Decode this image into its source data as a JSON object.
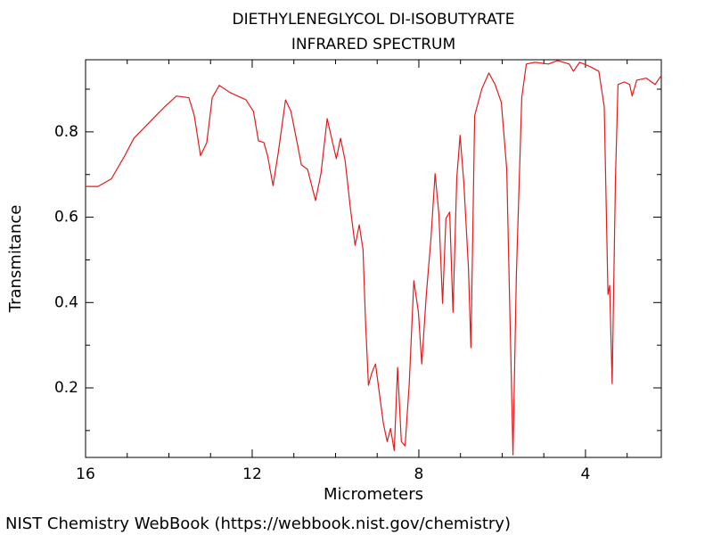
{
  "chart_data": {
    "type": "line",
    "title": "DIETHYLENEGLYCOL DI-ISOBUTYRATE",
    "subtitle": "INFRARED SPECTRUM",
    "x_label": "Micrometers",
    "y_label": "Transmitance",
    "source": "NIST Chemistry WebBook (https://webbook.nist.gov/chemistry)",
    "color": "#e41a1c",
    "xlim": [
      16,
      2.18
    ],
    "ylim": [
      0.037,
      0.969
    ],
    "xticks": [
      16,
      12,
      8,
      4
    ],
    "yticks": [
      0.2,
      0.4,
      0.6,
      0.8
    ],
    "xminorticks": [
      15,
      14,
      13,
      11,
      10,
      9,
      7,
      6,
      5,
      3
    ],
    "yminorticks": [
      0.1,
      0.3,
      0.5,
      0.7,
      0.9
    ],
    "x": [
      16,
      15.7,
      15.38,
      15.06,
      14.84,
      14.42,
      14.1,
      13.82,
      13.52,
      13.39,
      13.24,
      13.09,
      12.96,
      12.79,
      12.53,
      12.15,
      11.97,
      11.85,
      11.72,
      11.63,
      11.5,
      11.37,
      11.2,
      11.07,
      10.9,
      10.82,
      10.67,
      10.48,
      10.35,
      10.2,
      10.07,
      9.98,
      9.88,
      9.77,
      9.64,
      9.53,
      9.43,
      9.34,
      9.28,
      9.21,
      9.13,
      9.04,
      8.95,
      8.85,
      8.76,
      8.68,
      8.59,
      8.51,
      8.42,
      8.33,
      8.23,
      8.12,
      8.01,
      7.93,
      7.82,
      7.71,
      7.61,
      7.52,
      7.43,
      7.35,
      7.26,
      7.18,
      7.09,
      7.01,
      6.92,
      6.81,
      6.75,
      6.66,
      6.49,
      6.32,
      6.17,
      6.02,
      5.89,
      5.81,
      5.74,
      5.66,
      5.53,
      5.42,
      5.21,
      4.89,
      4.67,
      4.39,
      4.29,
      4.14,
      3.89,
      3.68,
      3.55,
      3.46,
      3.42,
      3.36,
      3.28,
      3.22,
      3.07,
      2.94,
      2.88,
      2.77,
      2.54,
      2.33,
      2.18
    ],
    "values": [
      0.672,
      0.672,
      0.69,
      0.744,
      0.785,
      0.827,
      0.859,
      0.884,
      0.88,
      0.838,
      0.744,
      0.775,
      0.88,
      0.909,
      0.892,
      0.875,
      0.848,
      0.779,
      0.775,
      0.744,
      0.674,
      0.754,
      0.875,
      0.848,
      0.764,
      0.723,
      0.712,
      0.639,
      0.702,
      0.831,
      0.775,
      0.737,
      0.785,
      0.733,
      0.618,
      0.534,
      0.582,
      0.524,
      0.356,
      0.206,
      0.235,
      0.256,
      0.189,
      0.116,
      0.074,
      0.105,
      0.053,
      0.248,
      0.074,
      0.064,
      0.21,
      0.451,
      0.377,
      0.256,
      0.419,
      0.549,
      0.702,
      0.608,
      0.398,
      0.597,
      0.612,
      0.377,
      0.691,
      0.792,
      0.681,
      0.482,
      0.294,
      0.838,
      0.9,
      0.938,
      0.911,
      0.869,
      0.712,
      0.356,
      0.043,
      0.461,
      0.88,
      0.959,
      0.963,
      0.959,
      0.967,
      0.959,
      0.942,
      0.963,
      0.953,
      0.942,
      0.859,
      0.419,
      0.44,
      0.21,
      0.691,
      0.911,
      0.917,
      0.911,
      0.884,
      0.921,
      0.926,
      0.911,
      0.932
    ]
  }
}
